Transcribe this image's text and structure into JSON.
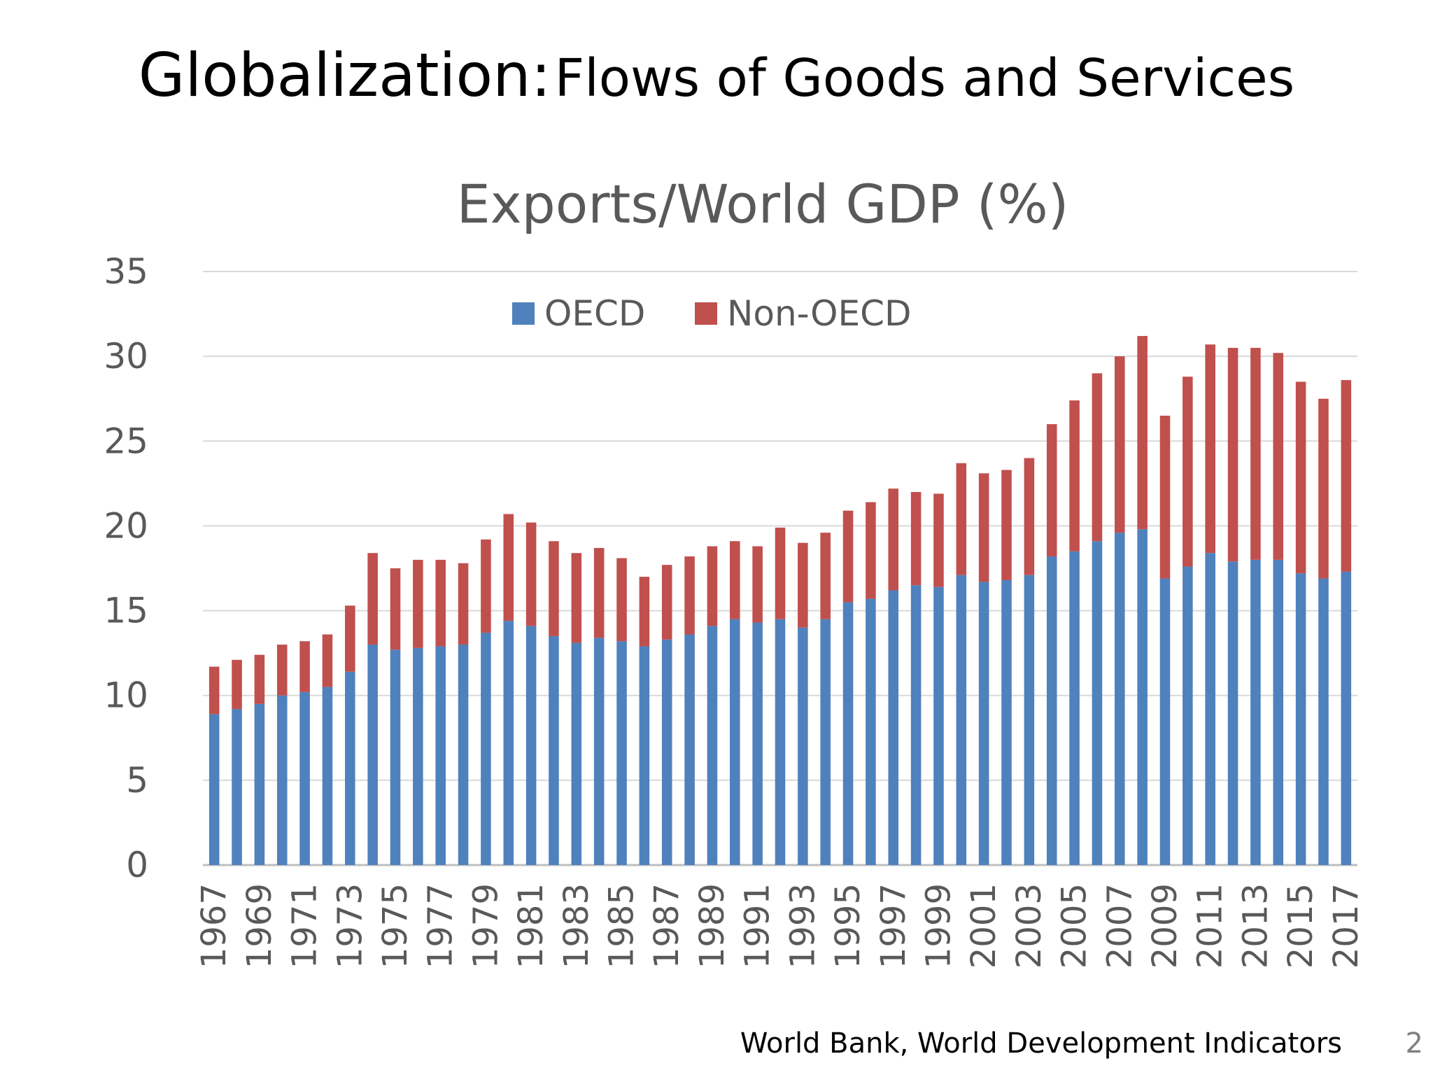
{
  "slide": {
    "title_main": "Globalization:",
    "title_sub": "Flows of Goods and Services",
    "source": "World Bank, World Development Indicators",
    "page_number": "2"
  },
  "chart_data": {
    "type": "bar",
    "stacked": true,
    "title": "Exports/World GDP (%)",
    "xlabel": "",
    "ylabel": "",
    "ylim": [
      0,
      35
    ],
    "yticks": [
      0,
      5,
      10,
      15,
      20,
      25,
      30,
      35
    ],
    "grid": true,
    "legend_position": "top-center",
    "categories": [
      "1967",
      "1968",
      "1969",
      "1970",
      "1971",
      "1972",
      "1973",
      "1974",
      "1975",
      "1976",
      "1977",
      "1978",
      "1979",
      "1980",
      "1981",
      "1982",
      "1983",
      "1984",
      "1985",
      "1986",
      "1987",
      "1988",
      "1989",
      "1990",
      "1991",
      "1992",
      "1993",
      "1994",
      "1995",
      "1996",
      "1997",
      "1998",
      "1999",
      "2000",
      "2001",
      "2002",
      "2003",
      "2004",
      "2005",
      "2006",
      "2007",
      "2008",
      "2009",
      "2010",
      "2011",
      "2012",
      "2013",
      "2014",
      "2015",
      "2016",
      "2017"
    ],
    "tick_labels": [
      "1967",
      "1969",
      "1971",
      "1973",
      "1975",
      "1977",
      "1979",
      "1981",
      "1983",
      "1985",
      "1987",
      "1989",
      "1991",
      "1993",
      "1995",
      "1997",
      "1999",
      "2001",
      "2003",
      "2005",
      "2007",
      "2009",
      "2011",
      "2013",
      "2015",
      "2017"
    ],
    "series": [
      {
        "name": "OECD",
        "color": "#4f81bd",
        "values": [
          8.9,
          9.2,
          9.5,
          10.0,
          10.2,
          10.5,
          11.4,
          13.0,
          12.7,
          12.8,
          12.9,
          13.0,
          13.7,
          14.4,
          14.1,
          13.5,
          13.1,
          13.4,
          13.2,
          12.9,
          13.3,
          13.6,
          14.1,
          14.5,
          14.3,
          14.5,
          14.0,
          14.5,
          15.5,
          15.7,
          16.2,
          16.5,
          16.4,
          17.1,
          16.7,
          16.8,
          17.1,
          18.2,
          18.5,
          19.1,
          19.6,
          19.8,
          16.9,
          17.6,
          18.4,
          17.9,
          18.0,
          18.0,
          17.2,
          16.9,
          17.3
        ]
      },
      {
        "name": "Non-OECD",
        "color": "#c0504d",
        "values": [
          2.8,
          2.9,
          2.9,
          3.0,
          3.0,
          3.1,
          3.9,
          5.4,
          4.8,
          5.2,
          5.1,
          4.8,
          5.5,
          6.3,
          6.1,
          5.6,
          5.3,
          5.3,
          4.9,
          4.1,
          4.4,
          4.6,
          4.7,
          4.6,
          4.5,
          5.4,
          5.0,
          5.1,
          5.4,
          5.7,
          6.0,
          5.5,
          5.5,
          6.6,
          6.4,
          6.5,
          6.9,
          7.8,
          8.9,
          9.9,
          10.4,
          11.4,
          9.6,
          11.2,
          12.3,
          12.6,
          12.5,
          12.2,
          11.3,
          10.6,
          11.3
        ]
      }
    ]
  }
}
